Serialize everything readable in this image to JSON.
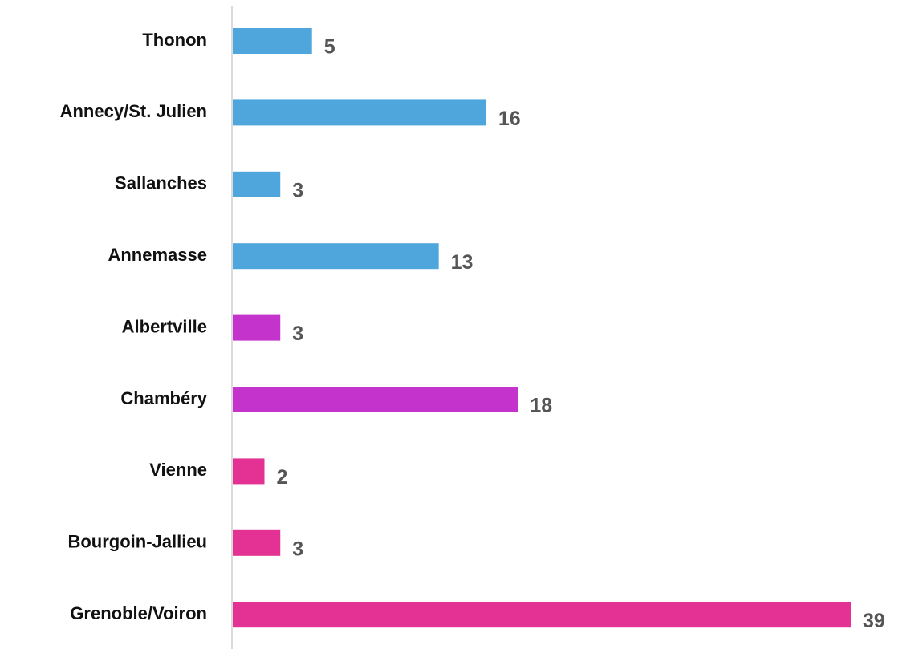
{
  "chart_data": {
    "type": "bar",
    "orientation": "horizontal",
    "categories": [
      "Thonon",
      "Annecy/St. Julien",
      "Sallanches",
      "Annemasse",
      "Albertville",
      "Chambéry",
      "Vienne",
      "Bourgoin-Jallieu",
      "Grenoble/Voiron"
    ],
    "values": [
      5,
      16,
      3,
      13,
      3,
      18,
      2,
      3,
      39
    ],
    "colors": [
      "#4fa6dd",
      "#4fa6dd",
      "#4fa6dd",
      "#4fa6dd",
      "#c433cc",
      "#c433cc",
      "#e33293",
      "#e33293",
      "#e33293"
    ]
  }
}
